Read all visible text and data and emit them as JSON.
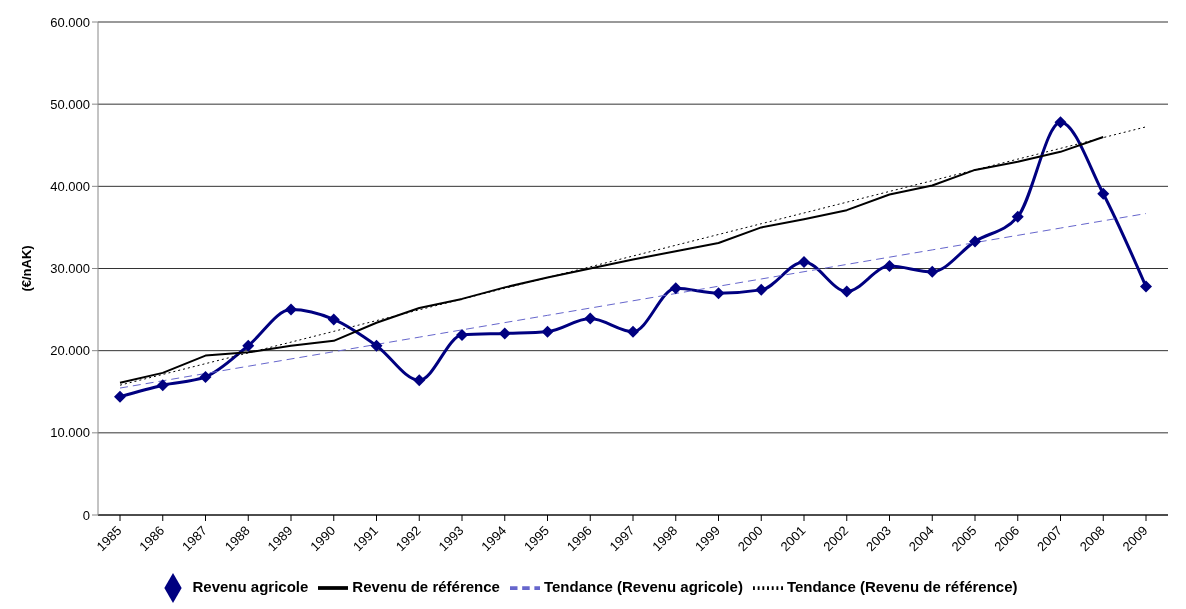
{
  "chart_data": {
    "type": "line",
    "ylabel": "(€/nAK)",
    "categories": [
      "1985",
      "1986",
      "1987",
      "1988",
      "1989",
      "1990",
      "1991",
      "1992",
      "1993",
      "1994",
      "1995",
      "1996",
      "1997",
      "1998",
      "1999",
      "2000",
      "2001",
      "2002",
      "2003",
      "2004",
      "2005",
      "2006",
      "2007",
      "2008",
      "2009"
    ],
    "series": [
      {
        "name": "Revenu agricole",
        "color": "#000080",
        "marker": "diamond",
        "line_style": "solid",
        "values": [
          14400,
          15800,
          16800,
          20600,
          25000,
          23800,
          20600,
          16400,
          21900,
          22100,
          22300,
          23900,
          22300,
          27600,
          27000,
          27400,
          30800,
          27200,
          30300,
          29600,
          33300,
          36300,
          47800,
          39100,
          27800
        ]
      },
      {
        "name": "Revenu de référence",
        "color": "#000000",
        "marker": "none",
        "line_style": "solid",
        "values": [
          16100,
          17300,
          19400,
          19800,
          20600,
          21200,
          23400,
          25200,
          26300,
          27700,
          28900,
          30000,
          31100,
          32100,
          33100,
          35000,
          36000,
          37100,
          39000,
          40100,
          42000,
          43000,
          44200,
          46000,
          null
        ]
      },
      {
        "name": "Tendance (Revenu agricole)",
        "color": "#6666cc",
        "marker": "none",
        "line_style": "dashed",
        "values": [
          15450,
          16335,
          17220,
          18105,
          18990,
          19875,
          20760,
          21645,
          22530,
          23415,
          24300,
          25185,
          26070,
          26955,
          27840,
          28725,
          29610,
          30495,
          31380,
          32265,
          33150,
          34035,
          34920,
          35805,
          36690
        ]
      },
      {
        "name": "Tendance (Revenu de référence)",
        "color": "#000000",
        "marker": "none",
        "line_style": "dotted",
        "values": [
          15800,
          17110,
          18420,
          19730,
          21040,
          22350,
          23660,
          24970,
          26280,
          27590,
          28900,
          30210,
          31520,
          32830,
          34140,
          35450,
          36760,
          38070,
          39380,
          40690,
          42000,
          43310,
          44620,
          45930,
          47240
        ]
      }
    ],
    "ylim": [
      0,
      60000
    ],
    "yticks": [
      {
        "value": 0,
        "label": "0"
      },
      {
        "value": 10000,
        "label": "10.000"
      },
      {
        "value": 20000,
        "label": "20.000"
      },
      {
        "value": 30000,
        "label": "30.000"
      },
      {
        "value": 40000,
        "label": "40.000"
      },
      {
        "value": 50000,
        "label": "50.000"
      },
      {
        "value": 60000,
        "label": "60.000"
      }
    ],
    "grid": "y",
    "legend": "bottom"
  }
}
